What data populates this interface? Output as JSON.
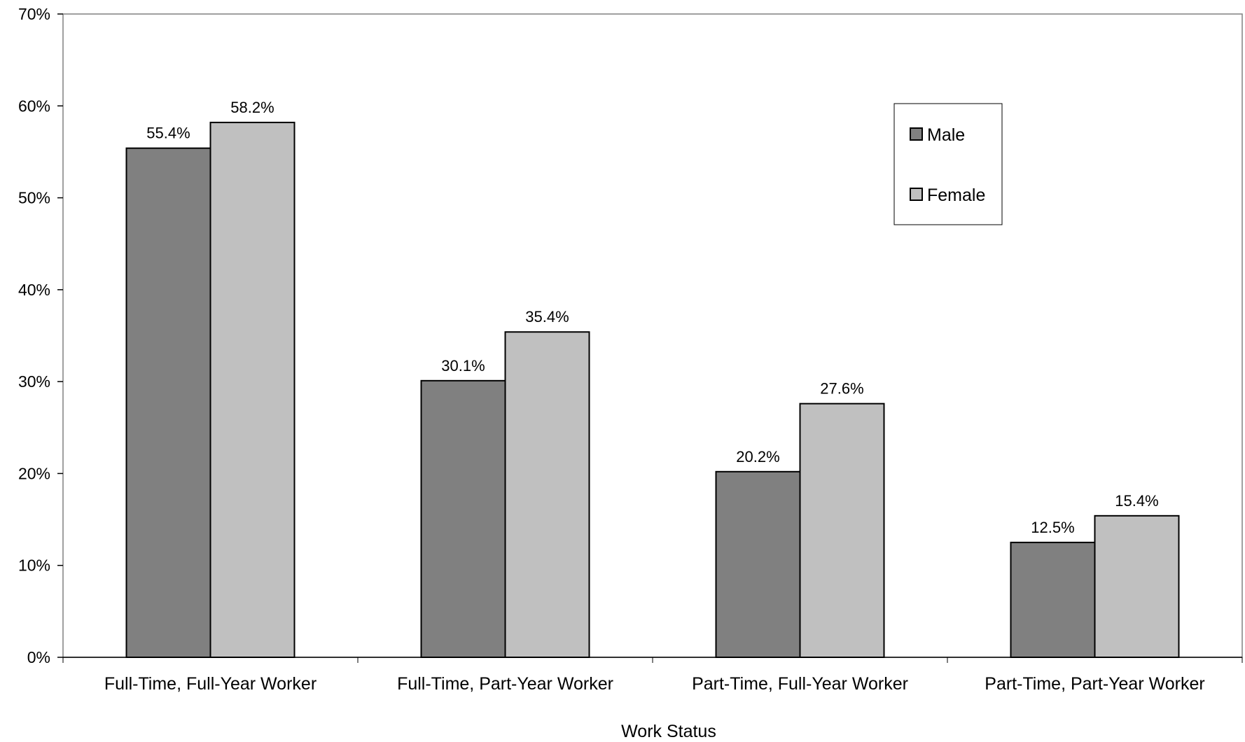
{
  "chart_data": {
    "type": "bar",
    "categories": [
      "Full-Time, Full-Year Worker",
      "Full-Time, Part-Year Worker",
      "Part-Time, Full-Year Worker",
      "Part-Time, Part-Year Worker"
    ],
    "series": [
      {
        "name": "Male",
        "values": [
          55.4,
          30.1,
          20.2,
          12.5
        ],
        "labels": [
          "55.4%",
          "30.1%",
          "20.2%",
          "12.5%"
        ],
        "color": "#808080"
      },
      {
        "name": "Female",
        "values": [
          58.2,
          35.4,
          27.6,
          15.4
        ],
        "labels": [
          "58.2%",
          "35.4%",
          "27.6%",
          "15.4%"
        ],
        "color": "#c0c0c0"
      }
    ],
    "title": "",
    "xlabel": "Work Status",
    "ylabel": "",
    "ylim": [
      0,
      70
    ],
    "yticks": [
      0,
      10,
      20,
      30,
      40,
      50,
      60,
      70
    ],
    "ytick_labels": [
      "0%",
      "10%",
      "20%",
      "30%",
      "40%",
      "50%",
      "60%",
      "70%"
    ],
    "grid": false,
    "legend_position": "top-right"
  }
}
